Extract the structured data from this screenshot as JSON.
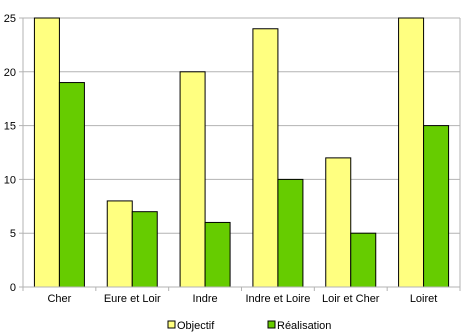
{
  "chart_data": {
    "type": "bar",
    "categories": [
      "Cher",
      "Eure et Loir",
      "Indre",
      "Indre et Loire",
      "Loir et Cher",
      "Loiret"
    ],
    "series": [
      {
        "name": "Objectif",
        "values": [
          25,
          8,
          20,
          24,
          12,
          25
        ],
        "color": "#ffff80"
      },
      {
        "name": "Réalisation",
        "values": [
          19,
          7,
          6,
          10,
          5,
          15
        ],
        "color": "#66cc00"
      }
    ],
    "ylim": [
      0,
      25
    ],
    "yticks": [
      0,
      5,
      10,
      15,
      20,
      25
    ],
    "grid": true,
    "legend": "bottom"
  }
}
